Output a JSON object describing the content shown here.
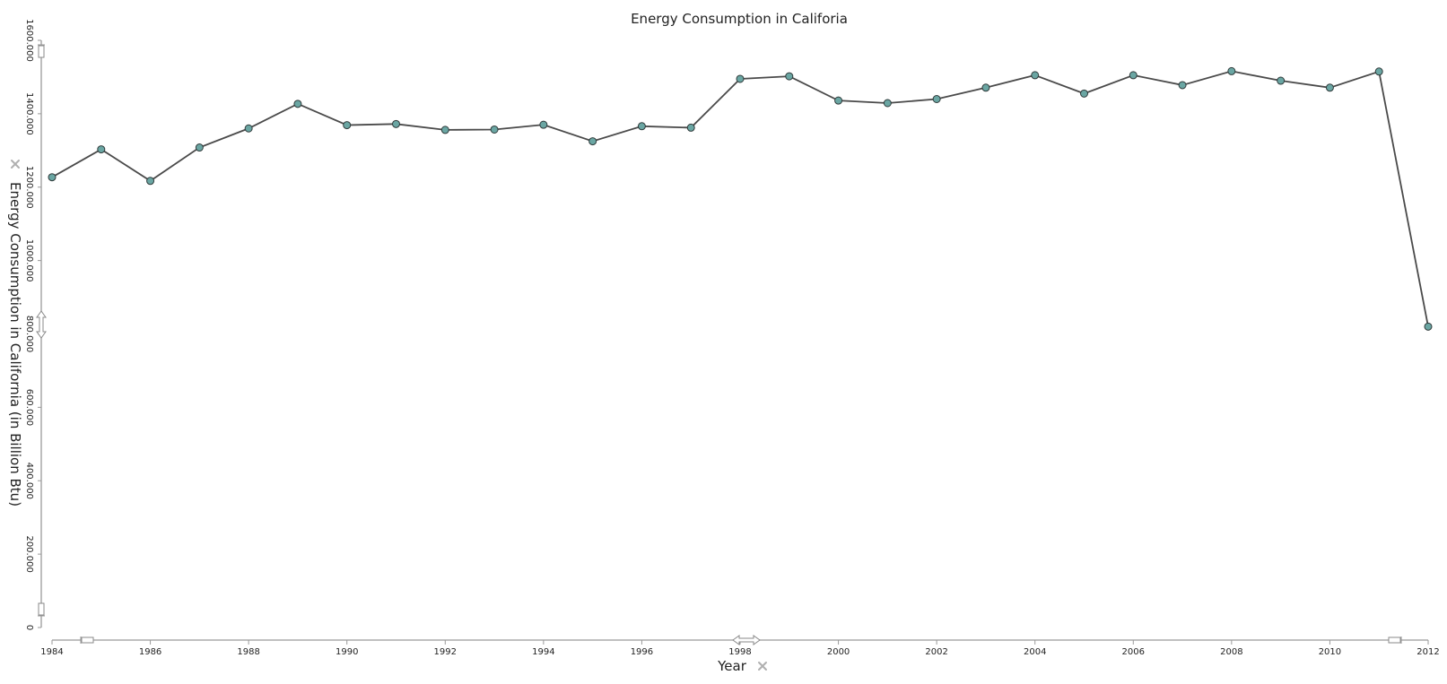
{
  "chart_data": {
    "type": "line",
    "title": "Energy Consumption in Califoria",
    "xlabel": "Year",
    "ylabel": "Energy Consumption in California (in Billion Btu)",
    "x": [
      1984,
      1985,
      1986,
      1987,
      1988,
      1989,
      1990,
      1991,
      1992,
      1993,
      1994,
      1995,
      1996,
      1997,
      1998,
      1999,
      2000,
      2001,
      2002,
      2003,
      2004,
      2005,
      2006,
      2007,
      2008,
      2009,
      2010,
      2011,
      2012
    ],
    "series": [
      {
        "values": [
          1227000,
          1303000,
          1217000,
          1308000,
          1360000,
          1427000,
          1369000,
          1372000,
          1356000,
          1357000,
          1370000,
          1325000,
          1366000,
          1362000,
          1495000,
          1502000,
          1436000,
          1429000,
          1440000,
          1471000,
          1505000,
          1455000,
          1505000,
          1478000,
          1516000,
          1490000,
          1471000,
          1515000,
          820000
        ],
        "color": "#6aa6a3"
      }
    ],
    "xlim": [
      1984,
      2012
    ],
    "ylim": [
      0,
      1600000
    ],
    "x_ticks": [
      "1984",
      "1986",
      "1988",
      "1990",
      "1992",
      "1994",
      "1996",
      "1998",
      "2000",
      "2002",
      "2004",
      "2006",
      "2008",
      "2010",
      "2012"
    ],
    "y_ticks": [
      "0",
      "200.000",
      "400.000",
      "600.000",
      "800.000",
      "1000.000",
      "1200.000",
      "1400.000",
      "1600.000"
    ],
    "grid": false,
    "legend": "none"
  },
  "icons": {
    "x_axis_remove": "close-icon",
    "y_axis_remove": "close-icon"
  },
  "colors": {
    "line": "#4a4a4a",
    "marker_fill": "#6aa6a3",
    "axis": "#9a9a9a"
  }
}
